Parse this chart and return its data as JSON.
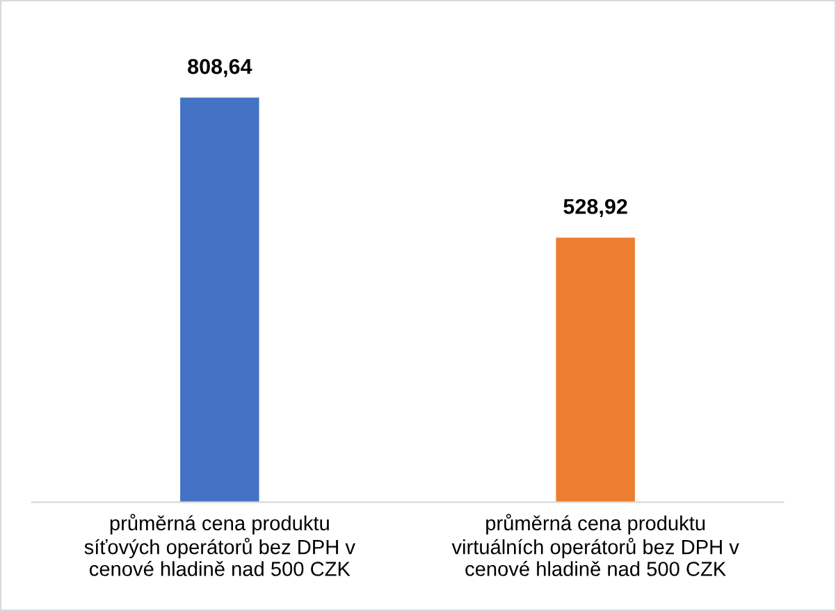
{
  "chart_data": {
    "type": "bar",
    "categories": [
      "průměrná cena produktu\nsíťových operátorů bez DPH v\ncenové hladině nad 500 CZK",
      "průměrná cena produktu\nvirtuálních operátorů bez DPH v\ncenové hladině nad 500 CZK"
    ],
    "values": [
      808.64,
      528.92
    ],
    "colors": [
      "#4472c4",
      "#ed7d31"
    ],
    "value_labels": [
      "808,64",
      "528,92"
    ],
    "grid": false,
    "legend": false
  }
}
